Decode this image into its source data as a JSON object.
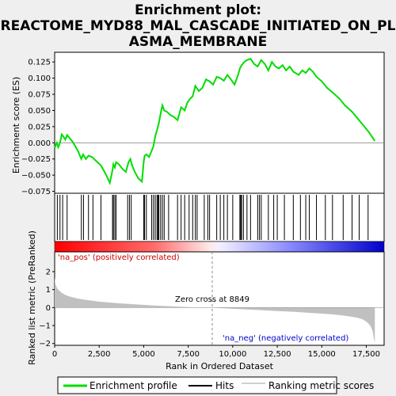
{
  "chart_data": {
    "type": "line",
    "title_lines": [
      "Enrichment plot:",
      "REACTOME_MYD88_MAL_CASCADE_INITIATED_ON_PL",
      "ASMA_MEMBRANE"
    ],
    "es_panel": {
      "ylabel": "Enrichment score (ES)",
      "ylim": [
        -0.078,
        0.14
      ],
      "yticks": [
        -0.075,
        -0.05,
        -0.025,
        0.0,
        0.025,
        0.05,
        0.075,
        0.1,
        0.125
      ],
      "ytick_labels": [
        "−0.075",
        "−0.050",
        "−0.025",
        "0.000",
        "0.025",
        "0.050",
        "0.075",
        "0.100",
        "0.125"
      ],
      "series": [
        {
          "name": "Enrichment profile",
          "color": "#00dd00",
          "x": [
            0,
            120,
            200,
            300,
            400,
            480,
            600,
            700,
            1000,
            1300,
            1500,
            1600,
            1750,
            1900,
            2100,
            2400,
            2600,
            2900,
            3100,
            3250,
            3300,
            3380,
            3450,
            3600,
            3800,
            4000,
            4150,
            4250,
            4350,
            4500,
            4700,
            4900,
            5000,
            5050,
            5150,
            5300,
            5450,
            5550,
            5650,
            5750,
            5850,
            5950,
            6050,
            6150,
            6300,
            6500,
            6700,
            6900,
            7100,
            7300,
            7450,
            7600,
            7750,
            7900,
            8100,
            8300,
            8500,
            8700,
            8900,
            9100,
            9300,
            9500,
            9700,
            9900,
            10100,
            10300,
            10400,
            10500,
            10650,
            10800,
            11000,
            11200,
            11400,
            11600,
            11800,
            12000,
            12200,
            12400,
            12600,
            12800,
            13000,
            13200,
            13400,
            13700,
            13900,
            14100,
            14300,
            14500,
            14700,
            15000,
            15300,
            15600,
            16000,
            16300,
            16700,
            17000,
            17300,
            17600,
            17800,
            17980
          ],
          "y": [
            -0.008,
            0.0,
            -0.007,
            0.0,
            0.013,
            0.01,
            0.005,
            0.012,
            0.002,
            -0.012,
            -0.025,
            -0.018,
            -0.025,
            -0.02,
            -0.022,
            -0.03,
            -0.035,
            -0.05,
            -0.062,
            -0.042,
            -0.033,
            -0.038,
            -0.03,
            -0.033,
            -0.04,
            -0.045,
            -0.03,
            -0.025,
            -0.035,
            -0.045,
            -0.055,
            -0.06,
            -0.03,
            -0.02,
            -0.018,
            -0.022,
            -0.012,
            -0.005,
            0.01,
            0.02,
            0.03,
            0.045,
            0.058,
            0.05,
            0.048,
            0.043,
            0.04,
            0.035,
            0.055,
            0.05,
            0.062,
            0.068,
            0.072,
            0.088,
            0.08,
            0.085,
            0.098,
            0.095,
            0.09,
            0.102,
            0.1,
            0.096,
            0.105,
            0.098,
            0.09,
            0.105,
            0.115,
            0.12,
            0.125,
            0.128,
            0.13,
            0.122,
            0.118,
            0.128,
            0.122,
            0.112,
            0.125,
            0.118,
            0.115,
            0.12,
            0.112,
            0.118,
            0.11,
            0.105,
            0.112,
            0.108,
            0.115,
            0.11,
            0.102,
            0.095,
            0.085,
            0.078,
            0.068,
            0.058,
            0.048,
            0.038,
            0.028,
            0.018,
            0.01,
            0.003
          ]
        }
      ]
    },
    "hits_x": [
      150,
      300,
      450,
      700,
      1500,
      1620,
      1900,
      2150,
      2600,
      3250,
      3300,
      3380,
      3450,
      4100,
      4200,
      4300,
      5000,
      5050,
      5150,
      5450,
      5550,
      5650,
      5750,
      5800,
      5850,
      5950,
      6050,
      6150,
      6400,
      6900,
      7100,
      7300,
      7550,
      7750,
      7900,
      8000,
      8400,
      8600,
      8700,
      9100,
      9300,
      9500,
      9700,
      10000,
      10400,
      10450,
      10500,
      10600,
      10800,
      11000,
      11400,
      11500,
      11600,
      12000,
      12300,
      12500,
      12900,
      13400,
      13800,
      14100,
      14300,
      14700,
      15200,
      15600,
      16200,
      16700,
      17100,
      17600
    ],
    "rank_panel": {
      "ylabel": "Ranked list metric (PreRanked)",
      "ylim": [
        -2.1,
        3.1
      ],
      "yticks": [
        -2,
        -1,
        0,
        1,
        2
      ],
      "ytick_labels": [
        "−2",
        "−1",
        "0",
        "1",
        "2"
      ],
      "series_name": "Ranking metric scores",
      "metric_x": [
        0,
        30,
        80,
        150,
        250,
        400,
        600,
        900,
        1300,
        1800,
        2500,
        3500,
        4500,
        5500,
        6500,
        7500,
        8500,
        8849,
        9500,
        10500,
        11500,
        12500,
        13500,
        14500,
        15500,
        16000,
        16500,
        17000,
        17300,
        17500,
        17650,
        17750,
        17850,
        17920,
        17980
      ],
      "metric_y": [
        1.7,
        1.4,
        1.2,
        1.05,
        0.95,
        0.82,
        0.7,
        0.6,
        0.5,
        0.42,
        0.33,
        0.25,
        0.18,
        0.12,
        0.07,
        0.03,
        0.0,
        0.0,
        -0.04,
        -0.09,
        -0.14,
        -0.19,
        -0.24,
        -0.3,
        -0.37,
        -0.42,
        -0.48,
        -0.57,
        -0.66,
        -0.78,
        -0.92,
        -1.05,
        -1.3,
        -1.7,
        -1.95
      ]
    },
    "xaxis": {
      "label": "Rank in Ordered Dataset",
      "xlim": [
        0,
        18500
      ],
      "ticks": [
        0,
        2500,
        5000,
        7500,
        10000,
        12500,
        15000,
        17500
      ],
      "tick_labels": [
        "0",
        "2,500",
        "5,000",
        "7,500",
        "10,000",
        "12,500",
        "15,000",
        "17,500"
      ]
    },
    "zero_cross": 8849,
    "annotations": {
      "pos_label": "'na_pos' (positively correlated)",
      "neg_label": "'na_neg' (negatively correlated)",
      "zero_cross_label": "Zero cross at 8849",
      "pos_color": "#cc0000",
      "neg_color": "#0000cc"
    },
    "legend": {
      "items": [
        {
          "label": "Enrichment profile",
          "color": "#00dd00"
        },
        {
          "label": "Hits",
          "color": "#000000"
        },
        {
          "label": "Ranking metric scores",
          "color": "#c0c0c0"
        }
      ]
    }
  }
}
